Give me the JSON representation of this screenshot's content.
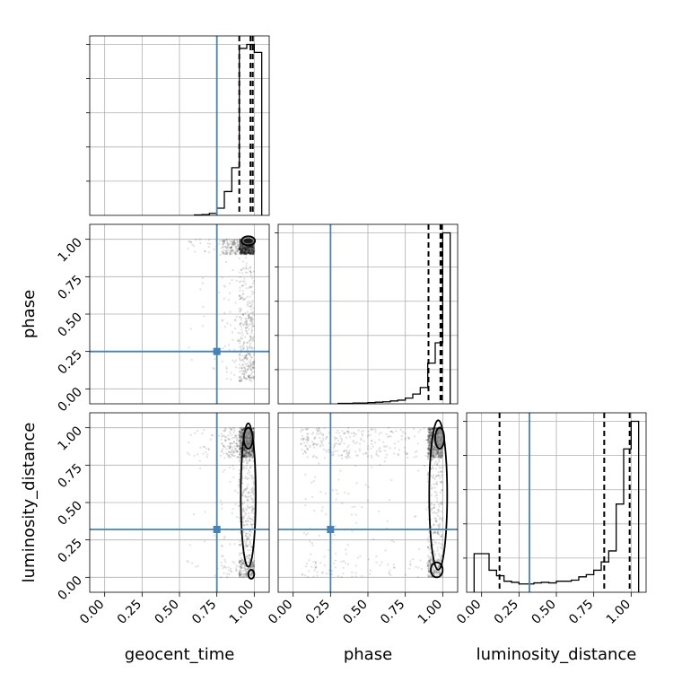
{
  "chart_data": {
    "type": "corner",
    "parameters": [
      "geocent_time",
      "phase",
      "luminosity_distance"
    ],
    "axis_labels": {
      "geocent_time": "geocent_time",
      "phase": "phase",
      "luminosity_distance": "luminosity_distance"
    },
    "truths": {
      "geocent_time": 0.75,
      "phase": 0.25,
      "luminosity_distance": 0.32
    },
    "truth_color": "#4682b4",
    "ticks": [
      0.0,
      0.25,
      0.5,
      0.75,
      1.0
    ],
    "tick_labels": [
      "0.00",
      "0.25",
      "0.50",
      "0.75",
      "1.00"
    ],
    "grid": true,
    "histograms": {
      "geocent_time": {
        "range": [
          -0.1,
          1.1
        ],
        "bin_edges": [
          0.6,
          0.65,
          0.7,
          0.75,
          0.8,
          0.85,
          0.9,
          0.95,
          1.0,
          1.05
        ],
        "counts": [
          1,
          2,
          5,
          18,
          60,
          120,
          420,
          430,
          410
        ],
        "quantiles": [
          0.9,
          0.975,
          0.99
        ]
      },
      "phase": {
        "range": [
          -0.1,
          1.1
        ],
        "bin_edges": [
          0.3,
          0.35,
          0.4,
          0.45,
          0.5,
          0.55,
          0.6,
          0.65,
          0.7,
          0.75,
          0.8,
          0.85,
          0.9,
          0.95,
          1.0,
          1.05
        ],
        "counts": [
          1,
          1,
          2,
          2,
          3,
          4,
          5,
          7,
          9,
          14,
          24,
          40,
          100,
          150,
          420
        ],
        "quantiles": [
          0.905,
          0.985,
          0.995
        ]
      },
      "luminosity_distance": {
        "range": [
          -0.1,
          1.1
        ],
        "bin_edges": [
          -0.05,
          0.0,
          0.05,
          0.1,
          0.15,
          0.2,
          0.25,
          0.3,
          0.35,
          0.4,
          0.45,
          0.5,
          0.55,
          0.6,
          0.65,
          0.7,
          0.75,
          0.8,
          0.85,
          0.9,
          0.95,
          1.0,
          1.05
        ],
        "counts": [
          70,
          70,
          40,
          30,
          20,
          18,
          15,
          15,
          17,
          18,
          17,
          20,
          20,
          22,
          28,
          32,
          40,
          55,
          75,
          160,
          260,
          310
        ],
        "quantiles": [
          0.12,
          0.82,
          0.99
        ]
      }
    },
    "pairs": [
      {
        "x": "geocent_time",
        "y": "phase"
      },
      {
        "x": "geocent_time",
        "y": "luminosity_distance"
      },
      {
        "x": "phase",
        "y": "luminosity_distance"
      }
    ]
  }
}
